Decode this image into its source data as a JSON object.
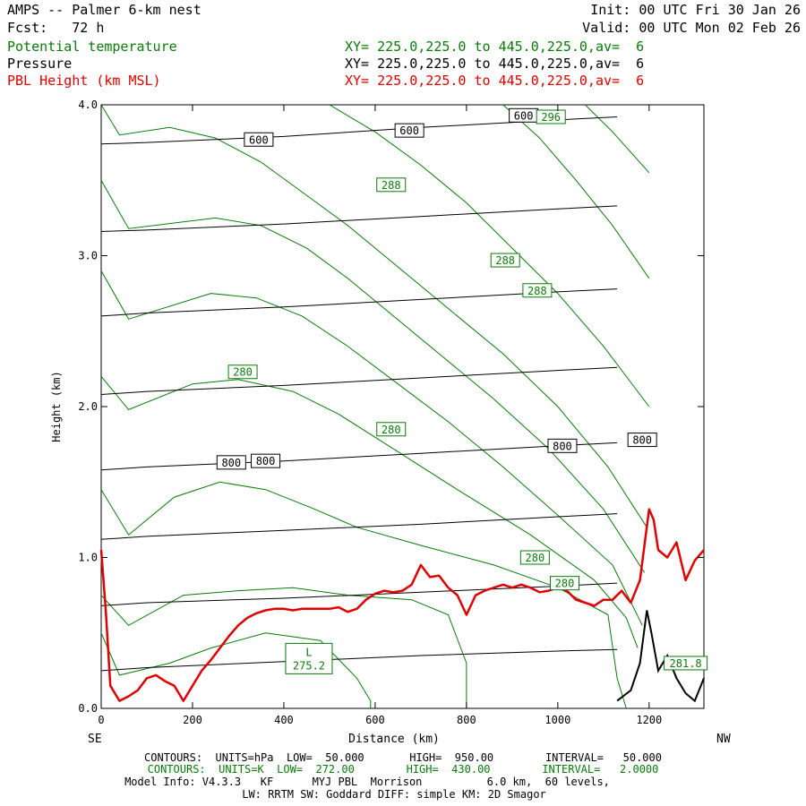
{
  "header": {
    "title": "AMPS -- Palmer 6-km nest",
    "init": "Init: 00 UTC Fri 30 Jan 26",
    "fcst": "Fcst:   72 h",
    "valid": "Valid: 00 UTC Mon 02 Feb 26"
  },
  "legend": [
    {
      "name": "Potential temperature",
      "xy": "XY= 225.0,225.0 to 445.0,225.0,av=  6",
      "color": "#0a7a0a"
    },
    {
      "name": "Pressure",
      "xy": "XY= 225.0,225.0 to 445.0,225.0,av=  6",
      "color": "#000000"
    },
    {
      "name": "PBL Height (km MSL)",
      "xy": "XY= 225.0,225.0 to 445.0,225.0,av=  6",
      "color": "#e00000"
    }
  ],
  "footer": {
    "line1": "CONTOURS:  UNITS=hPa  LOW=  50.000       HIGH=  950.00        INTERVAL=   50.000",
    "line2": "CONTOURS:  UNITS=K  LOW=  272.00        HIGH=  430.00        INTERVAL=   2.0000",
    "line3": "Model Info: V4.3.3   KF      MYJ PBL  Morrison          6.0 km,  60 levels,",
    "line4": "LW: RRTM SW: Goddard DIFF: simple KM: 2D Smagor"
  },
  "chart_data": {
    "type": "line",
    "xlabel": "Distance (km)",
    "ylabel": "Height (km)",
    "xlim": [
      0,
      1320
    ],
    "ylim": [
      0,
      4.0
    ],
    "x_ticks": [
      0,
      200,
      400,
      600,
      800,
      1000,
      1200
    ],
    "y_ticks": [
      0.0,
      1.0,
      2.0,
      3.0,
      4.0
    ],
    "y_tick_labels": [
      "0.0",
      "1.0",
      "2.0",
      "3.0",
      "4.0"
    ],
    "left_end_label": "SE",
    "right_end_label": "NW",
    "pressure_color": "#000000",
    "theta_color": "#0a7a0a",
    "pbl_color": "#e00000",
    "pressure_contours": [
      {
        "x": [
          0,
          100,
          400,
          700,
          1000,
          1130
        ],
        "y": [
          0.25,
          0.27,
          0.31,
          0.35,
          0.38,
          0.39
        ]
      },
      {
        "x": [
          0,
          100,
          400,
          700,
          1000,
          1130
        ],
        "y": [
          0.68,
          0.7,
          0.73,
          0.77,
          0.81,
          0.83
        ]
      },
      {
        "x": [
          0,
          100,
          400,
          700,
          1000,
          1130
        ],
        "y": [
          1.12,
          1.14,
          1.18,
          1.22,
          1.27,
          1.29
        ]
      },
      {
        "x": [
          0,
          100,
          400,
          700,
          1000,
          1130
        ],
        "y": [
          1.58,
          1.6,
          1.64,
          1.69,
          1.74,
          1.76
        ]
      },
      {
        "x": [
          0,
          100,
          400,
          700,
          1000,
          1130
        ],
        "y": [
          2.08,
          2.1,
          2.14,
          2.19,
          2.24,
          2.26
        ]
      },
      {
        "x": [
          0,
          100,
          400,
          700,
          1000,
          1130
        ],
        "y": [
          2.6,
          2.62,
          2.66,
          2.71,
          2.76,
          2.78
        ]
      },
      {
        "x": [
          0,
          100,
          400,
          700,
          1000,
          1130
        ],
        "y": [
          3.16,
          3.17,
          3.21,
          3.26,
          3.31,
          3.33
        ]
      },
      {
        "x": [
          0,
          100,
          400,
          700,
          1000,
          1130
        ],
        "y": [
          3.74,
          3.75,
          3.79,
          3.85,
          3.9,
          3.92
        ]
      }
    ],
    "pressure_labels": [
      {
        "text": "600",
        "x": 345,
        "y": 3.77
      },
      {
        "text": "600",
        "x": 675,
        "y": 3.83
      },
      {
        "text": "600",
        "x": 925,
        "y": 3.93
      },
      {
        "text": "800",
        "x": 285,
        "y": 1.63
      },
      {
        "text": "800",
        "x": 360,
        "y": 1.64
      },
      {
        "text": "800",
        "x": 1010,
        "y": 1.74
      },
      {
        "text": "800",
        "x": 1185,
        "y": 1.78
      }
    ],
    "theta_contours": [
      {
        "x": [
          0,
          40,
          150,
          240,
          360,
          480,
          560,
          590,
          590
        ],
        "y": [
          0.5,
          0.22,
          0.3,
          0.4,
          0.5,
          0.45,
          0.2,
          0.05,
          0.0
        ]
      },
      {
        "x": [
          0,
          60,
          180,
          300,
          420,
          540,
          680,
          760,
          800,
          800
        ],
        "y": [
          0.75,
          0.55,
          0.75,
          0.78,
          0.8,
          0.75,
          0.72,
          0.62,
          0.3,
          0.0
        ]
      },
      {
        "x": [
          0,
          60,
          160,
          260,
          360,
          460,
          560,
          700,
          860,
          1000,
          1110,
          1130,
          1150
        ],
        "y": [
          1.45,
          1.15,
          1.4,
          1.5,
          1.45,
          1.33,
          1.2,
          1.08,
          0.95,
          0.8,
          0.62,
          0.2,
          0.0
        ]
      },
      {
        "x": [
          0,
          60,
          200,
          300,
          420,
          520,
          640,
          780,
          940,
          1080,
          1150,
          1175
        ],
        "y": [
          2.2,
          1.98,
          2.15,
          2.18,
          2.1,
          1.95,
          1.72,
          1.45,
          1.15,
          0.85,
          0.6,
          0.4
        ]
      },
      {
        "x": [
          0,
          60,
          240,
          340,
          440,
          540,
          650,
          760,
          880,
          1000,
          1120,
          1185
        ],
        "y": [
          2.9,
          2.58,
          2.75,
          2.72,
          2.6,
          2.4,
          2.15,
          1.9,
          1.6,
          1.28,
          0.95,
          0.55
        ]
      },
      {
        "x": [
          0,
          60,
          250,
          350,
          450,
          540,
          640,
          740,
          860,
          980,
          1100,
          1190
        ],
        "y": [
          3.5,
          3.18,
          3.25,
          3.2,
          3.05,
          2.85,
          2.6,
          2.35,
          2.05,
          1.72,
          1.32,
          0.9
        ]
      },
      {
        "x": [
          0,
          40,
          150,
          250,
          350,
          450,
          540,
          640,
          760,
          880,
          1000,
          1110,
          1195
        ],
        "y": [
          4.0,
          3.8,
          3.85,
          3.78,
          3.62,
          3.4,
          3.2,
          2.95,
          2.65,
          2.35,
          2.0,
          1.6,
          1.2
        ]
      },
      {
        "x": [
          500,
          600,
          700,
          800,
          900,
          1000,
          1100,
          1200
        ],
        "y": [
          4.0,
          3.82,
          3.6,
          3.35,
          3.05,
          2.75,
          2.4,
          2.0
        ]
      },
      {
        "x": [
          880,
          960,
          1040,
          1120,
          1200
        ],
        "y": [
          4.0,
          3.78,
          3.5,
          3.2,
          2.85
        ]
      },
      {
        "x": [
          1060,
          1120,
          1200
        ],
        "y": [
          4.0,
          3.82,
          3.55
        ]
      }
    ],
    "theta_labels": [
      {
        "text": "288",
        "x": 635,
        "y": 3.47
      },
      {
        "text": "288",
        "x": 885,
        "y": 2.97
      },
      {
        "text": "288",
        "x": 955,
        "y": 2.77
      },
      {
        "text": "296",
        "x": 985,
        "y": 3.92
      },
      {
        "text": "280",
        "x": 310,
        "y": 2.23
      },
      {
        "text": "280",
        "x": 635,
        "y": 1.85
      },
      {
        "text": "280",
        "x": 950,
        "y": 1.0
      },
      {
        "text": "280",
        "x": 1015,
        "y": 0.83
      },
      {
        "text": "281.8",
        "x": 1280,
        "y": 0.3
      }
    ],
    "low_center": {
      "symbol": "L",
      "value": "275.2",
      "x": 455,
      "y": 0.33
    },
    "pbl_height": {
      "x": [
        0,
        10,
        20,
        40,
        60,
        80,
        100,
        120,
        140,
        160,
        180,
        200,
        220,
        240,
        260,
        280,
        300,
        320,
        340,
        360,
        380,
        400,
        420,
        440,
        460,
        480,
        500,
        520,
        540,
        560,
        580,
        600,
        620,
        640,
        660,
        680,
        700,
        720,
        740,
        760,
        780,
        800,
        820,
        840,
        860,
        880,
        900,
        920,
        940,
        960,
        980,
        1000,
        1020,
        1040,
        1060,
        1080,
        1100,
        1120,
        1140,
        1160,
        1180,
        1200,
        1210,
        1220,
        1240,
        1260,
        1280,
        1300,
        1320
      ],
      "y": [
        1.05,
        0.65,
        0.15,
        0.05,
        0.08,
        0.12,
        0.2,
        0.22,
        0.18,
        0.15,
        0.05,
        0.15,
        0.25,
        0.32,
        0.4,
        0.48,
        0.55,
        0.6,
        0.63,
        0.65,
        0.66,
        0.66,
        0.65,
        0.66,
        0.66,
        0.66,
        0.66,
        0.67,
        0.64,
        0.66,
        0.72,
        0.76,
        0.78,
        0.77,
        0.78,
        0.82,
        0.95,
        0.87,
        0.88,
        0.8,
        0.75,
        0.62,
        0.75,
        0.78,
        0.8,
        0.82,
        0.8,
        0.82,
        0.8,
        0.77,
        0.78,
        0.8,
        0.78,
        0.72,
        0.7,
        0.68,
        0.72,
        0.72,
        0.78,
        0.7,
        0.85,
        1.32,
        1.25,
        1.05,
        1.0,
        1.1,
        0.85,
        0.98,
        1.05
      ]
    },
    "terrain_black": {
      "x": [
        1130,
        1160,
        1180,
        1195,
        1205,
        1220,
        1240,
        1260,
        1280,
        1300,
        1320
      ],
      "y": [
        0.05,
        0.12,
        0.3,
        0.65,
        0.5,
        0.25,
        0.35,
        0.2,
        0.1,
        0.05,
        0.2
      ]
    }
  }
}
